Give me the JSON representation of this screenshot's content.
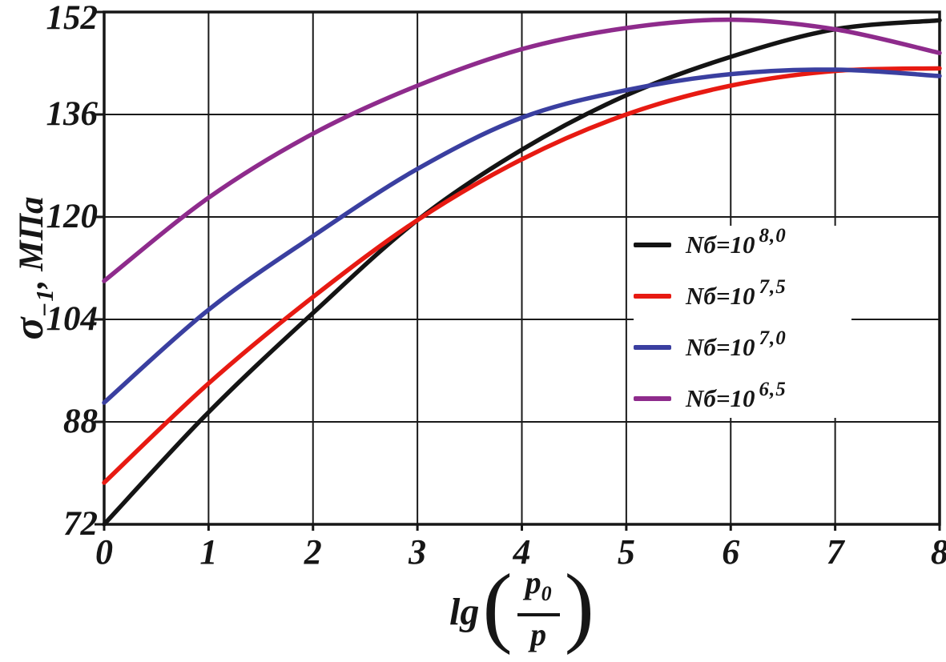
{
  "chart_data": {
    "type": "line",
    "title": "",
    "xlabel": "lg(p0/p)",
    "ylabel": "σ−1, МПа",
    "xlim": [
      0,
      8
    ],
    "ylim": [
      72,
      152
    ],
    "xticks": [
      0,
      1,
      2,
      3,
      4,
      5,
      6,
      7,
      8
    ],
    "yticks": [
      72,
      88,
      104,
      120,
      136,
      152
    ],
    "grid": true,
    "legend_position": "inside-upper-right",
    "x": [
      0,
      1,
      2,
      3,
      4,
      5,
      6,
      7,
      8
    ],
    "series": [
      {
        "name": "Nб=10^8,0",
        "color": "#141414",
        "values": [
          72,
          89.5,
          105,
          119.5,
          130.5,
          139,
          145,
          149.3,
          150.7
        ]
      },
      {
        "name": "Nб=10^7,5",
        "color": "#e71a12",
        "values": [
          78.5,
          94,
          107.5,
          119.5,
          129,
          136,
          140.5,
          142.8,
          143.2
        ]
      },
      {
        "name": "Nб=10^7,0",
        "color": "#3a3fa0",
        "values": [
          91,
          105.5,
          117,
          127.5,
          135.5,
          139.8,
          142.3,
          143,
          142
        ]
      },
      {
        "name": "Nб=10^6,5",
        "color": "#8e2b8c",
        "values": [
          110,
          123,
          133,
          140.5,
          146.2,
          149.5,
          150.8,
          149.3,
          145.6
        ]
      }
    ]
  },
  "axis": {
    "ylabel": {
      "base": "σ",
      "sub": "−1",
      "suffix": ", МПа"
    },
    "xlabel": {
      "func": "lg",
      "paren_open": "(",
      "num_base": "p",
      "num_sub": "0",
      "den": "p",
      "paren_close": ")"
    }
  },
  "legend": {
    "items": [
      {
        "base": "Nб=10",
        "sup": "8,0"
      },
      {
        "base": "Nб=10",
        "sup": "7,5"
      },
      {
        "base": "Nб=10",
        "sup": "7,0"
      },
      {
        "base": "Nб=10",
        "sup": "6,5"
      }
    ]
  }
}
